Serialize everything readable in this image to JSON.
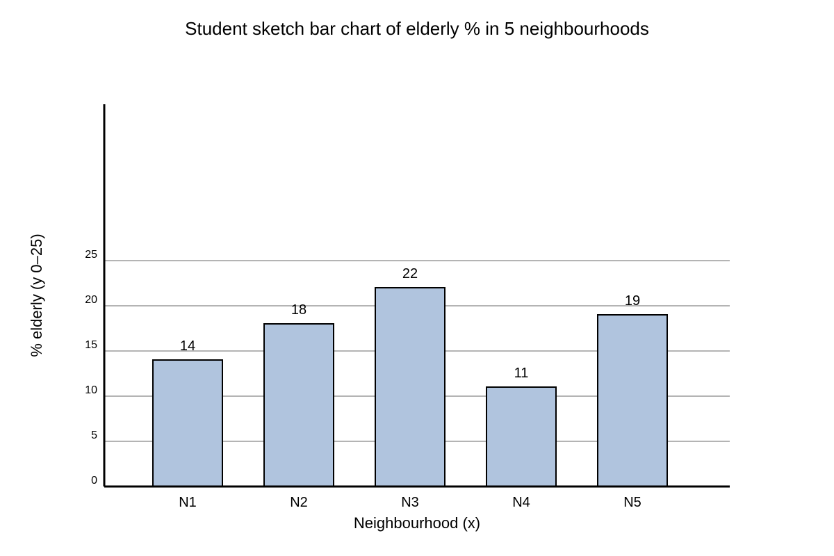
{
  "chart_data": {
    "type": "bar",
    "title": "Student sketch bar chart of elderly % in 5 neighbourhoods",
    "xlabel": "Neighbourhood (x)",
    "ylabel": "% elderly (y 0–25)",
    "categories": [
      "N1",
      "N2",
      "N3",
      "N4",
      "N5"
    ],
    "values": [
      14,
      18,
      22,
      11,
      19
    ],
    "data_labels": [
      "14",
      "18",
      "22",
      "11",
      "19"
    ],
    "y_ticks": [
      "0",
      "5",
      "10",
      "15",
      "20",
      "25"
    ],
    "grid": true,
    "legend": "none",
    "colors": {
      "bar_fill": "#b0c4de",
      "bar_stroke": "#000000",
      "grid": "#888888",
      "axis": "#000000"
    }
  }
}
